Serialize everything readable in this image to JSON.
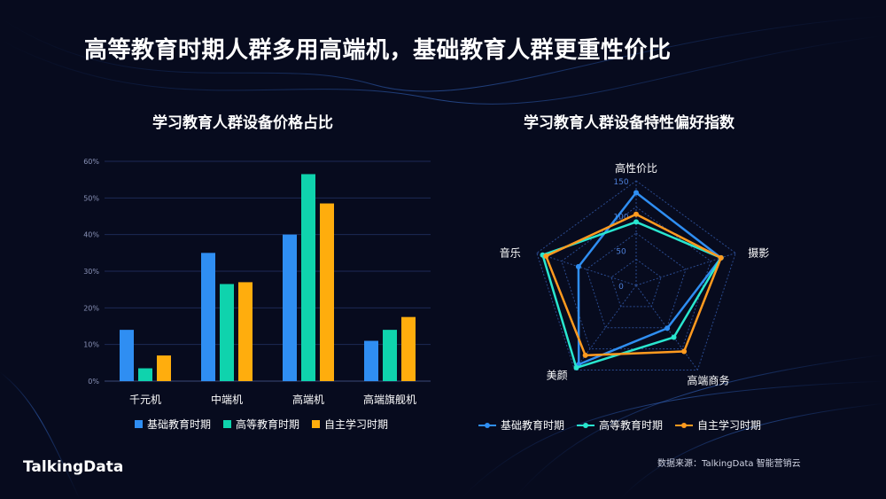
{
  "page": {
    "title": "高等教育时期人群多用高端机，基础教育人群更重性价比",
    "logo_text": "TalkingData",
    "source": "数据来源：TalkingData 智能营销云"
  },
  "colors": {
    "background": "#070b1e",
    "series": [
      "#2f8ef2",
      "#0fd3ad",
      "#ffad0d"
    ],
    "series_radar": [
      "#2f8ef2",
      "#29e6cf",
      "#ff9a1f"
    ]
  },
  "chart_data": [
    {
      "type": "bar",
      "title": "学习教育人群设备价格占比",
      "categories": [
        "千元机",
        "中端机",
        "高端机",
        "高端旗舰机"
      ],
      "ylim": [
        0,
        60
      ],
      "yticks": [
        "0%",
        "10%",
        "20%",
        "30%",
        "40%",
        "50%",
        "60%"
      ],
      "grid": true,
      "legend": "bottom",
      "series": [
        {
          "name": "基础教育时期",
          "values": [
            14,
            35,
            40,
            11
          ]
        },
        {
          "name": "高等教育时期",
          "values": [
            3.5,
            26.5,
            56.5,
            14
          ]
        },
        {
          "name": "自主学习时期",
          "values": [
            7,
            27,
            48.5,
            17.5
          ]
        }
      ]
    },
    {
      "type": "radar",
      "title": "学习教育人群设备特性偏好指数",
      "axes": [
        "高性价比",
        "摄影",
        "高端商务",
        "美颜",
        "音乐"
      ],
      "rmax": 150,
      "rticks": [
        "0",
        "50",
        "100",
        "150"
      ],
      "legend": "bottom",
      "series": [
        {
          "name": "基础教育时期",
          "values": [
            133,
            128,
            76,
            140,
            87
          ]
        },
        {
          "name": "高等教育时期",
          "values": [
            91,
            128,
            92,
            146,
            141
          ]
        },
        {
          "name": "自主学习时期",
          "values": [
            102,
            128,
            117,
            124,
            136
          ]
        }
      ]
    }
  ]
}
